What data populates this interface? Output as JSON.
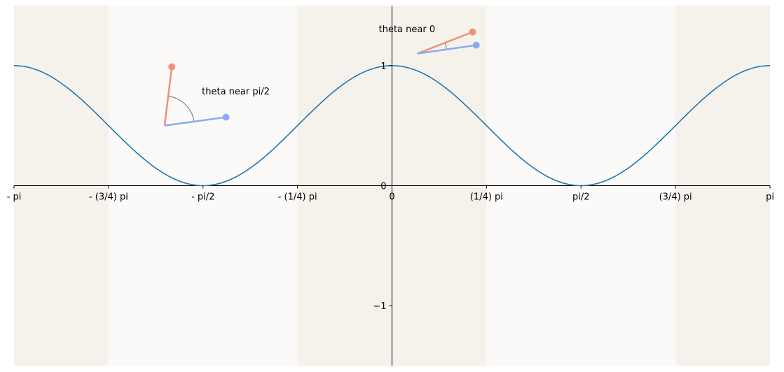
{
  "chart_data": {
    "type": "line",
    "title": "",
    "xlabel": "",
    "ylabel": "",
    "xlim": [
      -3.14159265,
      3.14159265
    ],
    "ylim": [
      -1.5,
      1.5
    ],
    "grid": false,
    "legend": "none",
    "x_ticks": [
      {
        "value": -3.14159265,
        "label": "- pi"
      },
      {
        "value": -2.35619449,
        "label": "- (3/4) pi"
      },
      {
        "value": -1.57079633,
        "label": "- pi/2"
      },
      {
        "value": -0.78539816,
        "label": "- (1/4) pi"
      },
      {
        "value": 0,
        "label": "0"
      },
      {
        "value": 0.78539816,
        "label": "(1/4) pi"
      },
      {
        "value": 1.57079633,
        "label": "pi/2"
      },
      {
        "value": 2.35619449,
        "label": "(3/4) pi"
      },
      {
        "value": 3.14159265,
        "label": "pi"
      }
    ],
    "y_ticks": [
      {
        "value": 1,
        "label": "1"
      },
      {
        "value": 0,
        "label": "0"
      },
      {
        "value": -1,
        "label": "−1"
      }
    ],
    "bands": [
      {
        "from": -3.14159265,
        "to": -2.35619449,
        "color": "#f5f2ec"
      },
      {
        "from": -2.35619449,
        "to": -0.78539816,
        "color": "#fbfaf8"
      },
      {
        "from": -0.78539816,
        "to": 0.78539816,
        "color": "#f5f2ec"
      },
      {
        "from": 0.78539816,
        "to": 2.35619449,
        "color": "#fbfaf8"
      },
      {
        "from": 2.35619449,
        "to": 3.14159265,
        "color": "#f5f2ec"
      }
    ],
    "series": [
      {
        "function": "cos^2(x)",
        "color": "#1f77b4",
        "x_start": -3.14159265,
        "x_end": 3.14159265,
        "samples": 240
      }
    ],
    "annotations": [
      {
        "text": "theta near pi/2",
        "text_at": [
          -1.58,
          0.76
        ],
        "origin": [
          -1.89,
          0.5
        ],
        "vector_a": {
          "tip": [
            -1.83,
            0.99
          ],
          "color": "#ee917a"
        },
        "vector_b": {
          "tip": [
            -1.38,
            0.57
          ],
          "color": "#8aabf2"
        },
        "arc_color": "#808080"
      },
      {
        "text": "theta near 0",
        "text_at": [
          -0.11,
          1.28
        ],
        "origin": [
          0.21,
          1.1
        ],
        "vector_a": {
          "tip": [
            0.67,
            1.28
          ],
          "color": "#ee917a"
        },
        "vector_b": {
          "tip": [
            0.7,
            1.17
          ],
          "color": "#8aabf2"
        },
        "arc_color": "#808080"
      }
    ]
  }
}
